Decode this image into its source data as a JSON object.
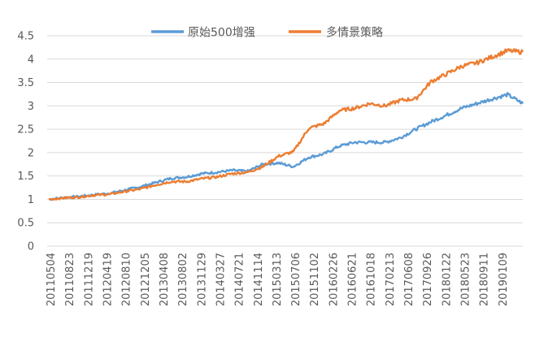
{
  "chart_data": {
    "type": "line",
    "title": "",
    "xlabel": "",
    "ylabel": "",
    "ylim": [
      0,
      4.5
    ],
    "yticks": [
      0,
      0.5,
      1,
      1.5,
      2,
      2.5,
      3,
      3.5,
      4,
      4.5
    ],
    "grid": true,
    "legend_position": "top",
    "x_tick_labels": [
      "20110504",
      "20110823",
      "20111219",
      "20120419",
      "20120810",
      "20121205",
      "20130408",
      "20130802",
      "20131129",
      "20140327",
      "20140721",
      "20141114",
      "20150313",
      "20150706",
      "20151102",
      "20160226",
      "20160621",
      "20161018",
      "20170213",
      "20170608",
      "20170926",
      "20180122",
      "20180523",
      "20180911",
      "20190109"
    ],
    "series": [
      {
        "name": "原始500增强",
        "color": "#5b9bd5",
        "values": [
          1.0,
          1.04,
          1.06,
          1.1,
          1.13,
          1.2,
          1.27,
          1.36,
          1.45,
          1.48,
          1.55,
          1.58,
          1.62,
          1.6,
          1.75,
          1.78,
          1.7,
          1.9,
          1.97,
          2.14,
          2.22,
          2.22,
          2.22,
          2.32,
          2.5,
          2.66,
          2.8,
          2.95,
          3.05,
          3.15,
          3.24,
          3.05
        ]
      },
      {
        "name": "多情景策略",
        "color": "#ed7d31",
        "values": [
          1.0,
          1.03,
          1.05,
          1.09,
          1.11,
          1.17,
          1.22,
          1.31,
          1.38,
          1.38,
          1.44,
          1.48,
          1.55,
          1.58,
          1.7,
          1.92,
          2.02,
          2.52,
          2.62,
          2.9,
          2.95,
          3.05,
          3.0,
          3.12,
          3.15,
          3.52,
          3.68,
          3.85,
          3.92,
          4.05,
          4.18,
          4.15
        ]
      }
    ]
  }
}
